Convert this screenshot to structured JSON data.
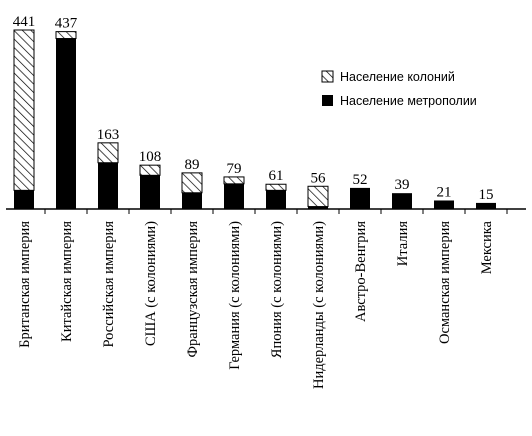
{
  "chart_data": {
    "type": "bar",
    "stacked": true,
    "categories": [
      "Британская империя",
      "Китайская империя",
      "Российская империя",
      "США (с колониями)",
      "Французская империя",
      "Германия (с колониями)",
      "Япония (с колониями)",
      "Нидерланды (с колониями)",
      "Австро-Венгрия",
      "Италия",
      "Османская империя",
      "Мексика"
    ],
    "totals": [
      441,
      437,
      163,
      108,
      89,
      79,
      61,
      56,
      52,
      39,
      21,
      15
    ],
    "series": [
      {
        "name": "Население метрополии",
        "pattern": "solid",
        "color": "#000000",
        "values": [
          46,
          420,
          114,
          83,
          40,
          62,
          46,
          6,
          52,
          39,
          21,
          15
        ]
      },
      {
        "name": "Население колоний",
        "pattern": "hatched",
        "color": "#000000",
        "values": [
          395,
          17,
          49,
          25,
          49,
          17,
          15,
          50,
          0,
          0,
          0,
          0
        ]
      }
    ],
    "legend": {
      "position": "top-right",
      "items": [
        "Население колоний",
        "Население метрополии"
      ]
    },
    "ylim": [
      0,
      441
    ],
    "grid": false,
    "y_axis_visible": false,
    "title": "",
    "xlabel": "",
    "ylabel": ""
  }
}
